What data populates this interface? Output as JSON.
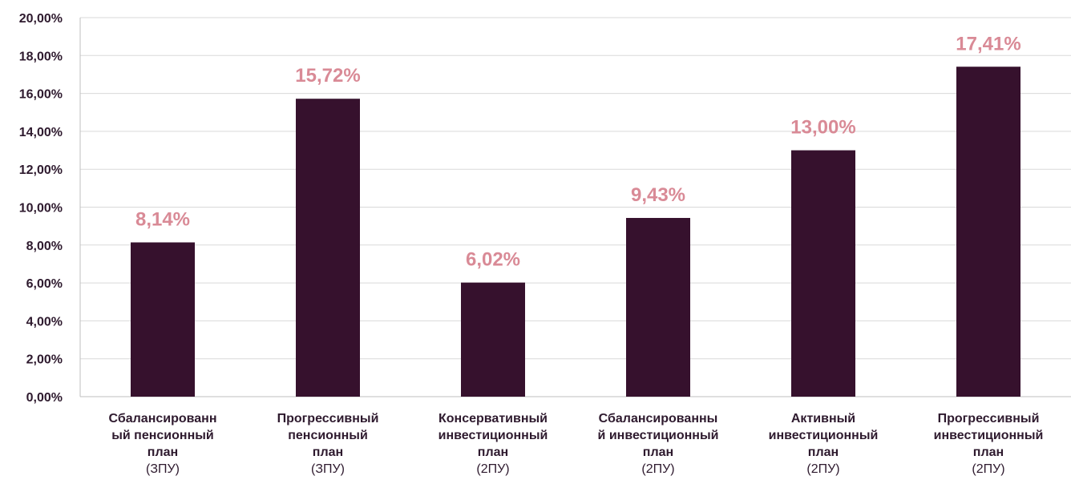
{
  "chart_data": {
    "type": "bar",
    "categories": [
      {
        "lines": [
          "Сбалансированн",
          "ый пенсионный",
          "план"
        ],
        "sub": "(ЗПУ)"
      },
      {
        "lines": [
          "Прогрессивный",
          "пенсионный",
          "план"
        ],
        "sub": "(ЗПУ)"
      },
      {
        "lines": [
          "Консервативный",
          "инвестиционный",
          "план"
        ],
        "sub": "(2ПУ)"
      },
      {
        "lines": [
          "Сбалансированны",
          "й инвестиционный",
          "план"
        ],
        "sub": "(2ПУ)"
      },
      {
        "lines": [
          "Активный",
          "инвестиционный",
          "план"
        ],
        "sub": "(2ПУ)"
      },
      {
        "lines": [
          "Прогрессивный",
          "инвестиционный",
          "план"
        ],
        "sub": "(2ПУ)"
      }
    ],
    "values": [
      8.14,
      15.72,
      6.02,
      9.43,
      13.0,
      17.41
    ],
    "data_labels": [
      "8,14%",
      "15,72%",
      "6,02%",
      "9,43%",
      "13,00%",
      "17,41%"
    ],
    "y_ticks": [
      "0,00%",
      "2,00%",
      "4,00%",
      "6,00%",
      "8,00%",
      "10,00%",
      "12,00%",
      "14,00%",
      "16,00%",
      "18,00%",
      "20,00%"
    ],
    "ylim": [
      0,
      20
    ],
    "grid": true,
    "legend": "none",
    "title": "",
    "xlabel": "",
    "ylabel": "",
    "colors": {
      "bar": "#36112d",
      "data_label": "#d98a96",
      "grid": "#d9d9d9",
      "axis": "#bfbfbf",
      "text": "#2e1a2e"
    }
  }
}
